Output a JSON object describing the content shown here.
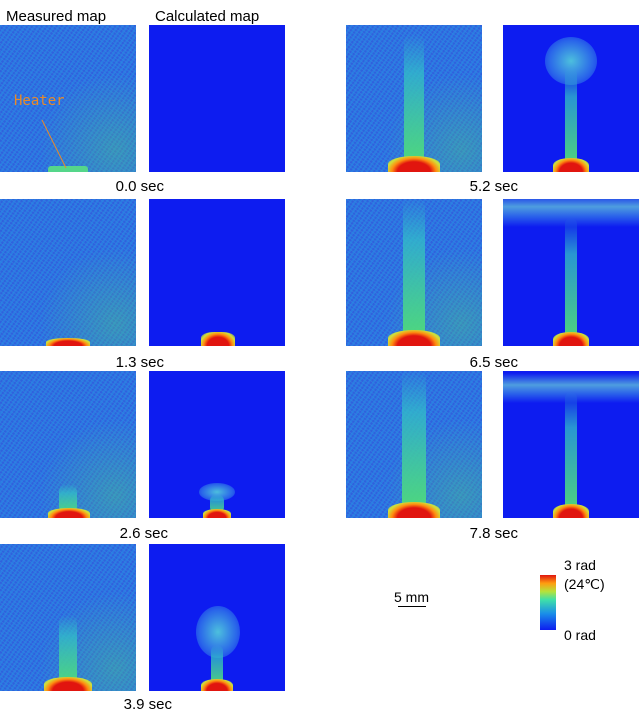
{
  "headers": {
    "measured": "Measured map",
    "calculated": "Calculated map"
  },
  "annotation": {
    "heater": "Heater"
  },
  "frames": [
    {
      "time": "0.0 sec"
    },
    {
      "time": "1.3 sec"
    },
    {
      "time": "2.6 sec"
    },
    {
      "time": "3.9 sec"
    },
    {
      "time": "5.2 sec"
    },
    {
      "time": "6.5 sec"
    },
    {
      "time": "7.8 sec"
    }
  ],
  "scale_bar": {
    "label": "5 mm"
  },
  "colorbar": {
    "max_label": "3 rad",
    "max_note": "(24℃)",
    "min_label": "0 rad",
    "colors": [
      "#0d1cf0",
      "#3fe0a8",
      "#e0150f"
    ]
  }
}
